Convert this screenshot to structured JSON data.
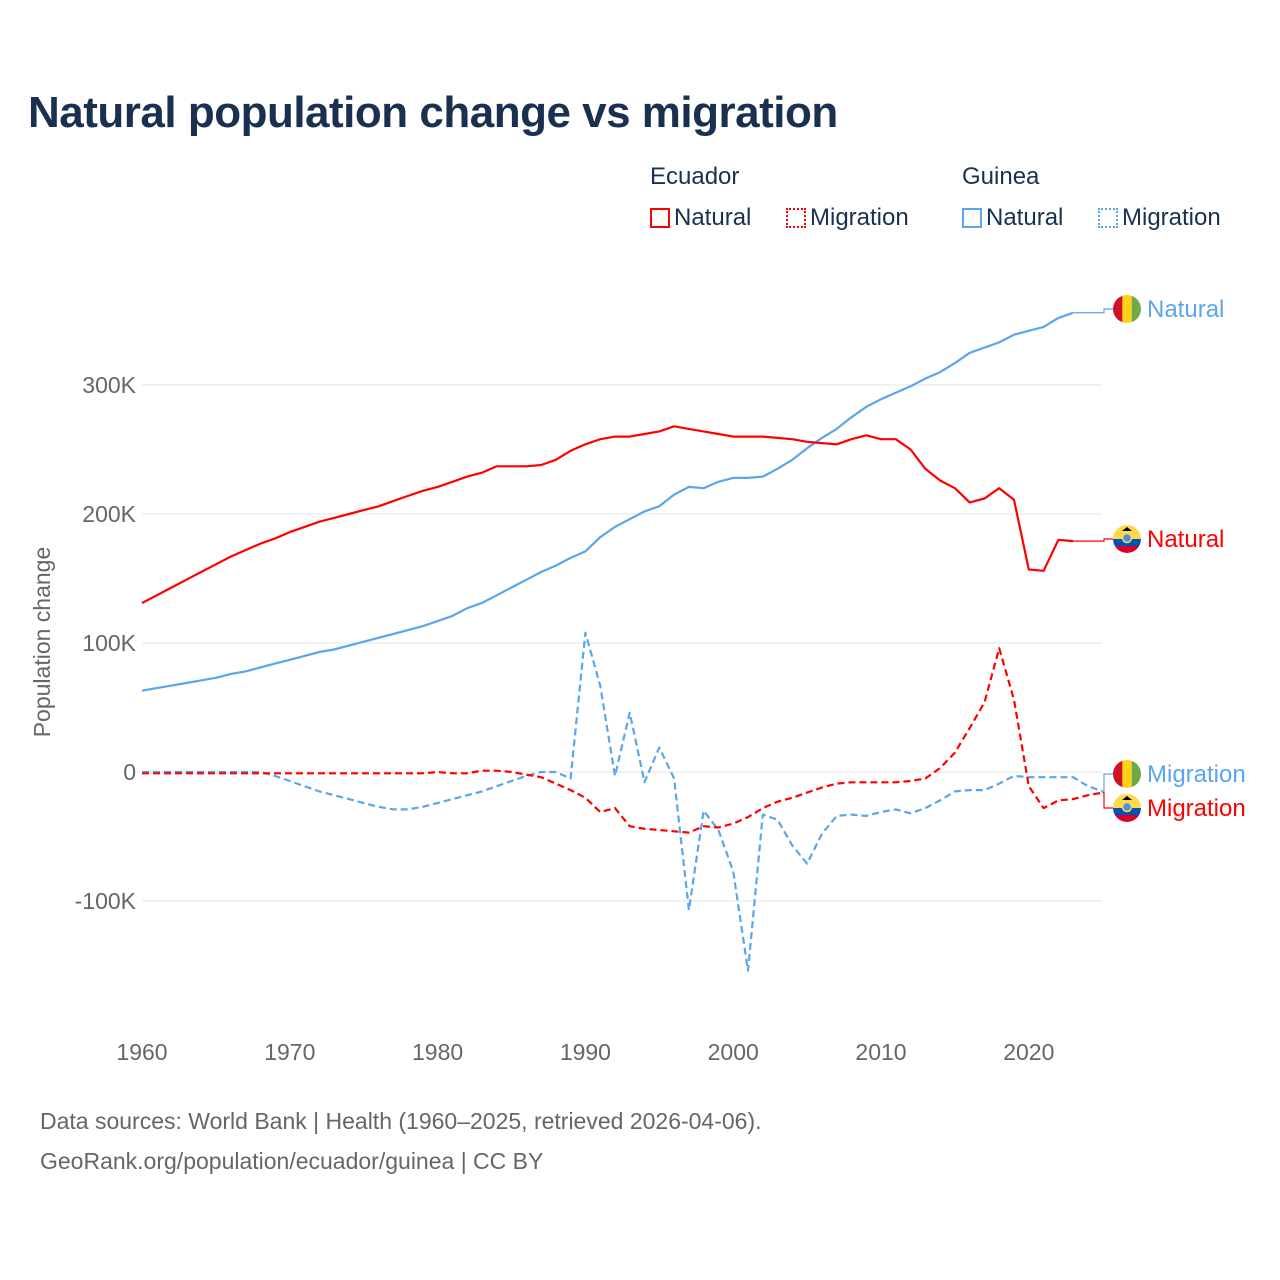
{
  "title": "Natural population change vs migration",
  "legend": {
    "groups": [
      {
        "country": "Ecuador",
        "items": [
          {
            "label": "Natural",
            "color": "#ff0000",
            "style": "solid"
          },
          {
            "label": "Migration",
            "color": "#ff0000",
            "style": "dotted"
          }
        ]
      },
      {
        "country": "Guinea",
        "items": [
          {
            "label": "Natural",
            "color": "#5aa5ee",
            "style": "solid"
          },
          {
            "label": "Migration",
            "color": "#5aa5ee",
            "style": "dotted"
          }
        ]
      }
    ]
  },
  "source_lines": [
    "Data sources: World Bank | Health (1960–2025, retrieved 2026-04-06).",
    "GeoRank.org/population/ecuador/guinea | CC BY"
  ],
  "chart_data": {
    "type": "line",
    "title": "Natural population change vs migration",
    "xlabel": "",
    "ylabel": "Population change",
    "xlim": [
      1960,
      2025
    ],
    "ylim": [
      -185000,
      370000
    ],
    "xticks": [
      1960,
      1970,
      1980,
      1990,
      2000,
      2010,
      2020
    ],
    "yticks": [
      {
        "v": -100000,
        "label": "-100K"
      },
      {
        "v": 0,
        "label": "0"
      },
      {
        "v": 100000,
        "label": "100K"
      },
      {
        "v": 200000,
        "label": "200K"
      },
      {
        "v": 300000,
        "label": "300K"
      }
    ],
    "grid": true,
    "start_year": 1960,
    "series": [
      {
        "name": "Guinea Natural",
        "end_label": "Natural",
        "color": "#5aa5ee",
        "dash": false,
        "flag": "guinea",
        "values_k": [
          63,
          65,
          67,
          69,
          71,
          73,
          76,
          78,
          81,
          84,
          87,
          90,
          93,
          95,
          98,
          101,
          104,
          107,
          110,
          113,
          117,
          121,
          127,
          131,
          137,
          143,
          149,
          155,
          160,
          166,
          171,
          182,
          190,
          196,
          202,
          206,
          215,
          221,
          220,
          225,
          228,
          228,
          229,
          235,
          242,
          251,
          259,
          266,
          275,
          283,
          289,
          294,
          299,
          305,
          310,
          317,
          325,
          329,
          333,
          339,
          342,
          345,
          352,
          356
        ]
      },
      {
        "name": "Ecuador Natural",
        "end_label": "Natural",
        "color": "#ff0000",
        "dash": false,
        "flag": "ecuador",
        "values_k": [
          131,
          137,
          143,
          149,
          155,
          161,
          167,
          172,
          177,
          181,
          186,
          190,
          194,
          197,
          200,
          203,
          206,
          210,
          214,
          218,
          221,
          225,
          229,
          232,
          237,
          237,
          237,
          238,
          242,
          249,
          254,
          258,
          260,
          260,
          262,
          264,
          268,
          266,
          264,
          262,
          260,
          260,
          260,
          259,
          258,
          256,
          255,
          254,
          258,
          261,
          258,
          258,
          250,
          235,
          226,
          220,
          209,
          212,
          220,
          211,
          157,
          156,
          180,
          179
        ]
      },
      {
        "name": "Guinea Migration",
        "end_label": "Migration",
        "color": "#5aa5ee",
        "dash": true,
        "flag": "guinea",
        "values_k": [
          0,
          0,
          0,
          0,
          0,
          0,
          0,
          0,
          0,
          -3,
          -7,
          -11,
          -15,
          -18,
          -21,
          -24,
          -27,
          -29,
          -29,
          -27,
          -24,
          -21,
          -18,
          -15,
          -11,
          -7,
          -3,
          0,
          0,
          -5,
          108,
          67,
          -3,
          46,
          -8,
          19,
          -5,
          -107,
          -30,
          -45,
          -77,
          -154,
          -33,
          -37,
          -57,
          -71,
          -48,
          -34,
          -33,
          -34,
          -31,
          -29,
          -32,
          -28,
          -22,
          -15,
          -14,
          -14,
          -9,
          -3,
          -4,
          -4,
          -4,
          -4,
          -11,
          -15
        ]
      },
      {
        "name": "Ecuador Migration",
        "end_label": "Migration",
        "color": "#ff0000",
        "dash": true,
        "flag": "ecuador",
        "values_k": [
          -1,
          -1,
          -1,
          -1,
          -1,
          -1,
          -1,
          -1,
          -1,
          -1,
          -1,
          -1,
          -1,
          -1,
          -1,
          -1,
          -1,
          -1,
          -1,
          -1,
          0,
          -1,
          -1,
          1,
          1,
          0,
          -2,
          -4,
          -9,
          -14,
          -20,
          -31,
          -28,
          -42,
          -44,
          -45,
          -46,
          -47,
          -42,
          -43,
          -40,
          -35,
          -28,
          -23,
          -20,
          -16,
          -12,
          -9,
          -8,
          -8,
          -8,
          -8,
          -7,
          -5,
          3,
          15,
          34,
          54,
          96,
          56,
          -11,
          -28,
          -22,
          -21,
          -18,
          -16
        ]
      }
    ]
  }
}
